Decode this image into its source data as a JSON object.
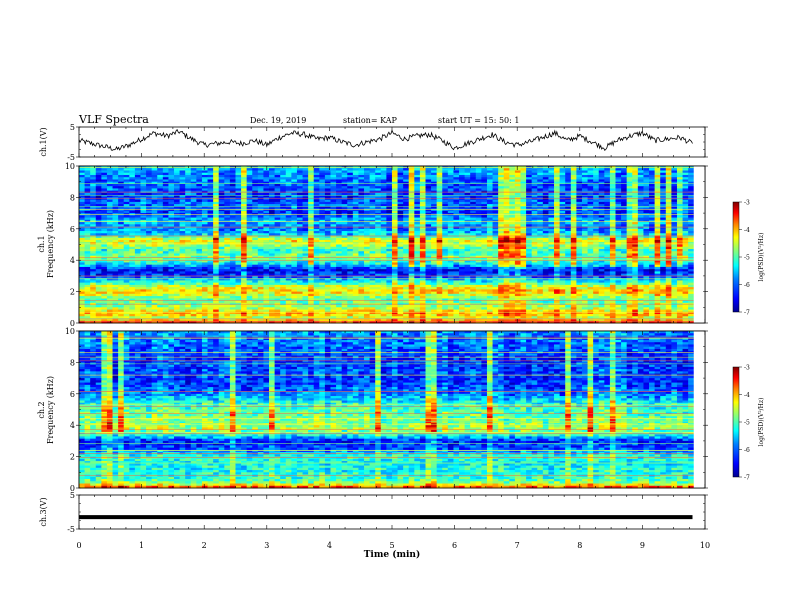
{
  "header": {
    "title": "VLF Spectra",
    "date": "Dec. 19, 2019",
    "station": "station= KAP",
    "start": "start  UT =   15: 50: 1"
  },
  "colorbar": {
    "label": "log(PSD)(V²/Hz)",
    "ticks": [
      -3,
      -4,
      -5,
      -6,
      -7
    ],
    "range": [
      -7,
      -3
    ],
    "colormap": [
      "#00008f",
      "#0000ff",
      "#0080ff",
      "#00ffff",
      "#80ff80",
      "#ffff00",
      "#ff8000",
      "#ff0000",
      "#800000"
    ]
  },
  "chart_data": [
    {
      "type": "line",
      "panel": "ch1-waveform",
      "ylabel": "ch.1(V)",
      "ylim": [
        -5,
        5
      ],
      "yticks": [
        5,
        -5
      ],
      "x": [
        0,
        0.2,
        0.4,
        0.6,
        0.8,
        1.0,
        1.2,
        1.4,
        1.6,
        1.8,
        2.0,
        2.2,
        2.4,
        2.6,
        2.8,
        3.0,
        3.2,
        3.4,
        3.6,
        3.8,
        4.0,
        4.2,
        4.4,
        4.6,
        4.8,
        5.0,
        5.2,
        5.4,
        5.6,
        5.8,
        6.0,
        6.2,
        6.4,
        6.6,
        6.8,
        7.0,
        7.2,
        7.4,
        7.6,
        7.8,
        8.0,
        8.2,
        8.4,
        8.6,
        8.8,
        9.0,
        9.2,
        9.4,
        9.6,
        9.8
      ],
      "values": [
        0.5,
        -0.5,
        -1.5,
        -2.5,
        -1,
        1,
        3,
        2,
        3.5,
        1,
        -1,
        -0.5,
        0,
        -0.5,
        0.5,
        -1,
        1.5,
        3,
        2.5,
        1,
        1.5,
        0,
        -1,
        0,
        1,
        3,
        1,
        2,
        2.5,
        0.5,
        -2,
        -0.5,
        1,
        2.5,
        0,
        -1,
        0,
        1.5,
        3,
        0.5,
        2,
        0,
        -2,
        0.5,
        2,
        3,
        0.5,
        1,
        1.5,
        -0.5
      ],
      "color": "#000000"
    },
    {
      "type": "heatmap",
      "panel": "ch1-spectrogram",
      "ylabel": "ch.1\nFrequency (kHz)",
      "ylim": [
        0,
        10
      ],
      "yticks": [
        0,
        2,
        4,
        6,
        8,
        10
      ],
      "xlim": [
        0,
        10
      ],
      "z_profile_by_khz": [
        [
          0.0,
          -3.4
        ],
        [
          0.3,
          -4.8
        ],
        [
          0.6,
          -4.2
        ],
        [
          1.0,
          -4.9
        ],
        [
          1.5,
          -5.2
        ],
        [
          2.0,
          -4.3
        ],
        [
          2.3,
          -4.6
        ],
        [
          2.6,
          -5.4
        ],
        [
          3.0,
          -6.3
        ],
        [
          3.4,
          -6.5
        ],
        [
          3.8,
          -5.5
        ],
        [
          4.2,
          -5.0
        ],
        [
          4.6,
          -5.3
        ],
        [
          5.0,
          -4.8
        ],
        [
          5.3,
          -4.5
        ],
        [
          5.6,
          -5.6
        ],
        [
          6.0,
          -6.0
        ],
        [
          6.5,
          -5.8
        ],
        [
          7.0,
          -6.3
        ],
        [
          7.5,
          -6.1
        ],
        [
          8.0,
          -6.3
        ],
        [
          8.5,
          -6.2
        ],
        [
          9.0,
          -6.1
        ],
        [
          9.5,
          -5.9
        ],
        [
          10.0,
          -5.8
        ]
      ],
      "color_scale": [
        -7,
        -3
      ]
    },
    {
      "type": "heatmap",
      "panel": "ch2-spectrogram",
      "ylabel": "ch.2\nFrequency (kHz)",
      "ylim": [
        0,
        10
      ],
      "yticks": [
        0,
        2,
        4,
        6,
        8,
        10
      ],
      "xlim": [
        0,
        10
      ],
      "z_profile_by_khz": [
        [
          0.0,
          -3.6
        ],
        [
          0.3,
          -4.9
        ],
        [
          0.6,
          -5.3
        ],
        [
          1.0,
          -5.4
        ],
        [
          1.5,
          -5.5
        ],
        [
          2.0,
          -5.3
        ],
        [
          2.5,
          -6.2
        ],
        [
          3.0,
          -6.4
        ],
        [
          3.4,
          -5.4
        ],
        [
          3.8,
          -4.8
        ],
        [
          4.2,
          -5.0
        ],
        [
          4.6,
          -5.1
        ],
        [
          5.0,
          -5.2
        ],
        [
          5.5,
          -5.5
        ],
        [
          6.0,
          -6.0
        ],
        [
          6.5,
          -6.2
        ],
        [
          7.0,
          -6.3
        ],
        [
          7.5,
          -6.2
        ],
        [
          8.0,
          -6.3
        ],
        [
          8.5,
          -6.2
        ],
        [
          9.0,
          -6.1
        ],
        [
          9.5,
          -6.0
        ],
        [
          10.0,
          -5.9
        ]
      ],
      "color_scale": [
        -7,
        -3
      ]
    },
    {
      "type": "line",
      "panel": "ch3-waveform",
      "ylabel": "ch.3(V)",
      "ylim": [
        -5,
        5
      ],
      "yticks": [
        5,
        -5
      ],
      "x": [
        0,
        9.8
      ],
      "values": [
        -1.5,
        -1.5
      ],
      "color": "#000000"
    }
  ],
  "xaxis": {
    "label": "Time (min)",
    "ticks": [
      0,
      1,
      2,
      3,
      4,
      5,
      6,
      7,
      8,
      9,
      10
    ],
    "xlim": [
      0,
      10
    ]
  }
}
